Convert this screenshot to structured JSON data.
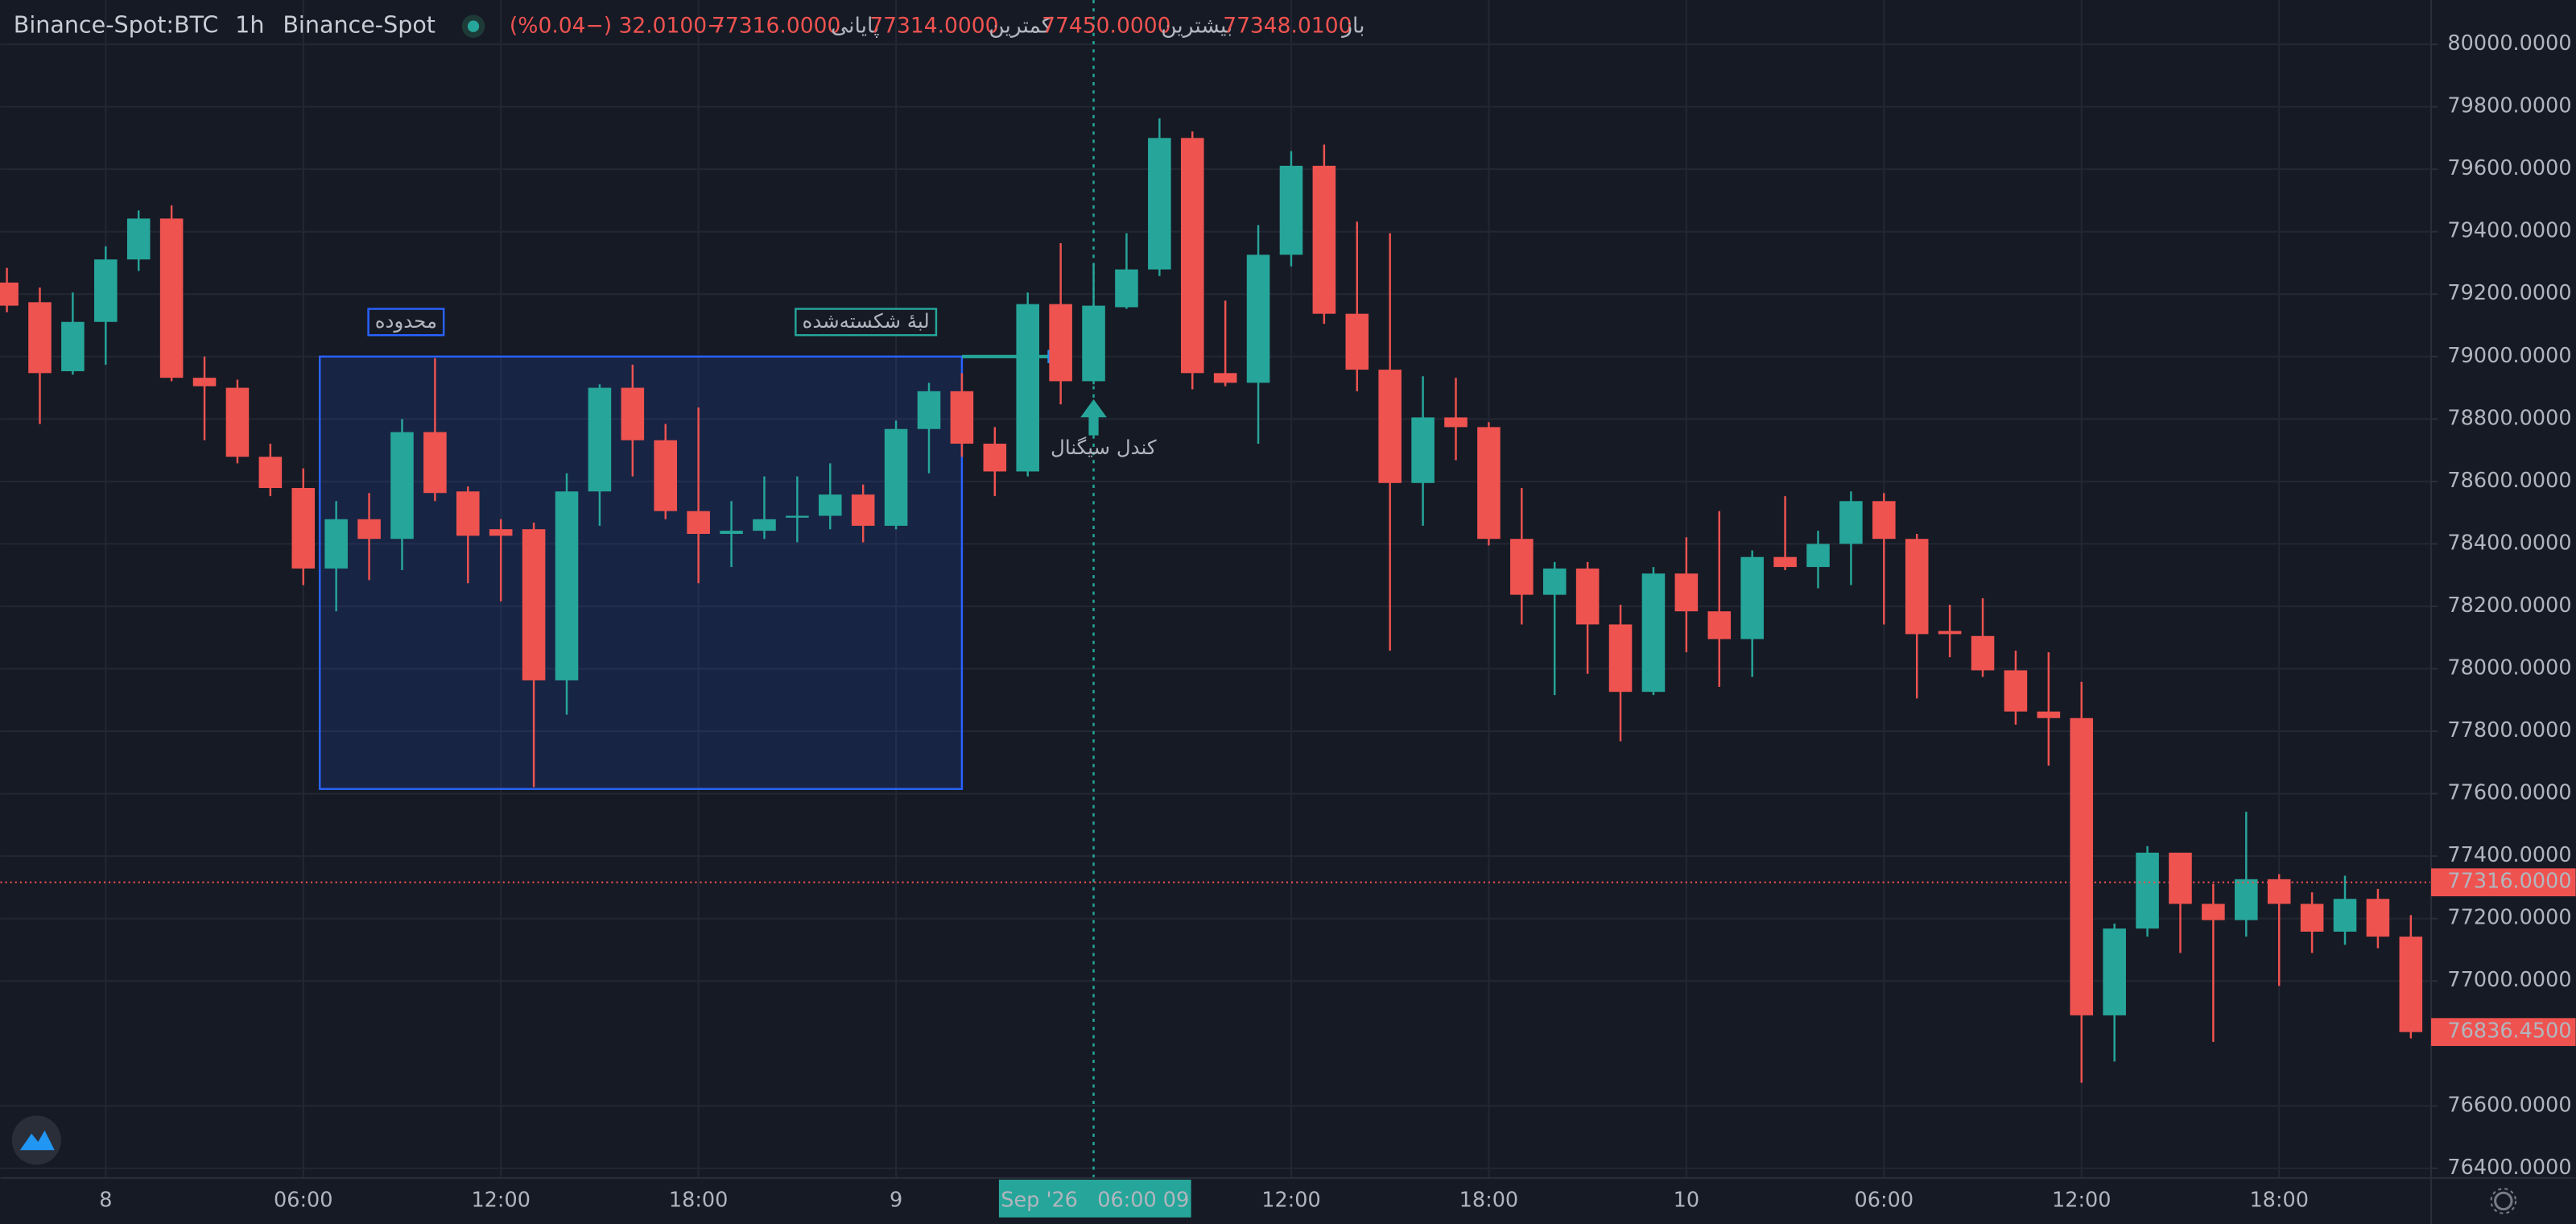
{
  "chart_data": {
    "type": "candlestick",
    "header": {
      "symbol": "Binance-Spot:BTC",
      "interval": "1h",
      "exchange": "Binance-Spot",
      "items": [
        {
          "label": "باز",
          "value": "77348.0100"
        },
        {
          "label": "بیشترین",
          "value": "77450.0000"
        },
        {
          "label": "کمترین",
          "value": "77314.0000"
        },
        {
          "label": "پایانی",
          "value": "77316.0000"
        }
      ],
      "change": "−32.0100 (−0.04%)"
    },
    "categories": [
      null,
      null,
      null,
      "8",
      null,
      null,
      null,
      null,
      null,
      "06:00",
      null,
      null,
      null,
      null,
      null,
      "12:00",
      null,
      null,
      null,
      null,
      null,
      "18:00",
      null,
      null,
      null,
      null,
      null,
      "9",
      null,
      null,
      null,
      null,
      null,
      null,
      null,
      null,
      null,
      null,
      null,
      "12:00",
      null,
      null,
      null,
      null,
      null,
      "18:00",
      null,
      null,
      null,
      null,
      null,
      "10",
      null,
      null,
      null,
      null,
      null,
      "06:00",
      null,
      null,
      null,
      null,
      null,
      "12:00",
      null,
      null,
      null,
      null,
      null,
      "18:00",
      null,
      null,
      null,
      null
    ],
    "open": [
      79237,
      79174,
      78953,
      79111,
      79311,
      79442,
      78932,
      78900,
      78679,
      78579,
      78321,
      78479,
      78416,
      78758,
      78568,
      78447,
      78447,
      77963,
      78568,
      78900,
      78732,
      78505,
      78432,
      78442,
      78484,
      78490,
      78558,
      78458,
      78768,
      78889,
      78721,
      78632,
      79168,
      78921,
      79158,
      79279,
      79700,
      78947,
      78916,
      79326,
      79611,
      79137,
      78958,
      78595,
      78805,
      78774,
      78416,
      78237,
      78321,
      78142,
      77926,
      78305,
      78184,
      78095,
      78358,
      78326,
      78400,
      78537,
      78416,
      78121,
      78105,
      77995,
      77863,
      77842,
      76890,
      77168,
      77411,
      77247,
      77195,
      77326,
      77247,
      77158,
      77263,
      77142
    ],
    "high": [
      79284,
      79221,
      79205,
      79353,
      79468,
      79484,
      79000,
      78926,
      78721,
      78642,
      78537,
      78563,
      78800,
      78995,
      78584,
      78479,
      78468,
      78626,
      78911,
      78974,
      78784,
      78837,
      78537,
      78616,
      78616,
      78658,
      78590,
      78795,
      78916,
      78947,
      78774,
      79205,
      79363,
      79300,
      79395,
      79763,
      79721,
      79179,
      79421,
      79658,
      79679,
      79432,
      79395,
      78937,
      78932,
      78790,
      78579,
      78342,
      78342,
      78205,
      78326,
      78421,
      78505,
      78379,
      78553,
      78442,
      78568,
      78563,
      78432,
      78205,
      78226,
      78058,
      78053,
      77958,
      77184,
      77432,
      77411,
      77311,
      77542,
      77342,
      77284,
      77337,
      77295,
      77211
    ],
    "low": [
      79142,
      78784,
      78942,
      78974,
      79274,
      78921,
      78732,
      78658,
      78553,
      78268,
      78184,
      78284,
      78316,
      78537,
      78274,
      78216,
      77621,
      77853,
      78458,
      78616,
      78479,
      78274,
      78326,
      78416,
      78405,
      78447,
      78405,
      78447,
      78626,
      78679,
      78553,
      78616,
      78847,
      78911,
      79153,
      79258,
      78895,
      78905,
      78721,
      79289,
      79105,
      78889,
      78058,
      78458,
      78668,
      78395,
      78142,
      77916,
      77984,
      77768,
      77916,
      78053,
      77942,
      77974,
      78316,
      78258,
      78268,
      78142,
      77905,
      78037,
      77974,
      77821,
      77690,
      76674,
      76742,
      77142,
      77090,
      76805,
      77142,
      76984,
      77090,
      77116,
      77105,
      76816
    ],
    "close": [
      79163,
      78947,
      79111,
      79311,
      79442,
      78932,
      78905,
      78679,
      78579,
      78321,
      78479,
      78416,
      78758,
      78563,
      78426,
      78426,
      77963,
      78568,
      78900,
      78732,
      78505,
      78432,
      78442,
      78479,
      78490,
      78558,
      78458,
      78768,
      78889,
      78721,
      78632,
      79168,
      78921,
      79163,
      79279,
      79700,
      78947,
      78916,
      79326,
      79611,
      79137,
      78958,
      78595,
      78805,
      78774,
      78416,
      78237,
      78321,
      78142,
      77926,
      78305,
      78184,
      78095,
      78358,
      78326,
      78400,
      78537,
      78416,
      78111,
      78111,
      77995,
      77863,
      77842,
      76890,
      77168,
      77411,
      77247,
      77195,
      77326,
      77247,
      77158,
      77263,
      77142,
      76836.45
    ],
    "up_color": "#26a69a",
    "down_color": "#ef5350",
    "ylim": [
      76369,
      80142
    ],
    "yticks": [
      {
        "value": 80000,
        "label": "80000.0000"
      },
      {
        "value": 79800,
        "label": "79800.0000"
      },
      {
        "value": 79600,
        "label": "79600.0000"
      },
      {
        "value": 79400,
        "label": "79400.0000"
      },
      {
        "value": 79200,
        "label": "79200.0000"
      },
      {
        "value": 79000,
        "label": "79000.0000"
      },
      {
        "value": 78800,
        "label": "78800.0000"
      },
      {
        "value": 78600,
        "label": "78600.0000"
      },
      {
        "value": 78400,
        "label": "78400.0000"
      },
      {
        "value": 78200,
        "label": "78200.0000"
      },
      {
        "value": 78000,
        "label": "78000.0000"
      },
      {
        "value": 77800,
        "label": "77800.0000"
      },
      {
        "value": 77600,
        "label": "77600.0000"
      },
      {
        "value": 77400,
        "label": "77400.0000"
      },
      {
        "value": 77200,
        "label": "77200.0000"
      },
      {
        "value": 77000,
        "label": "77000.0000"
      },
      {
        "value": 76600,
        "label": "76600.0000"
      },
      {
        "value": 76400,
        "label": "76400.0000"
      }
    ],
    "grid": true,
    "price_line": {
      "value": 77316,
      "label": "77316.0000",
      "color": "#ef5350"
    },
    "last_price": {
      "value": 76836.45,
      "label": "76836.4500",
      "color": "#ef5350"
    },
    "crosshair": {
      "label": "Sep '26   06:00 09",
      "color": "#26a69a"
    },
    "range_box": {
      "label": "محدوده",
      "high": 79000,
      "low": 77615,
      "color": "#2962ff"
    },
    "broken_edge": {
      "label": "لبهٔ شکسته‌شده",
      "value": 79000,
      "color": "#26a69a"
    },
    "signal": {
      "label": "کندل سیگنال",
      "color": "#26a69a"
    }
  }
}
